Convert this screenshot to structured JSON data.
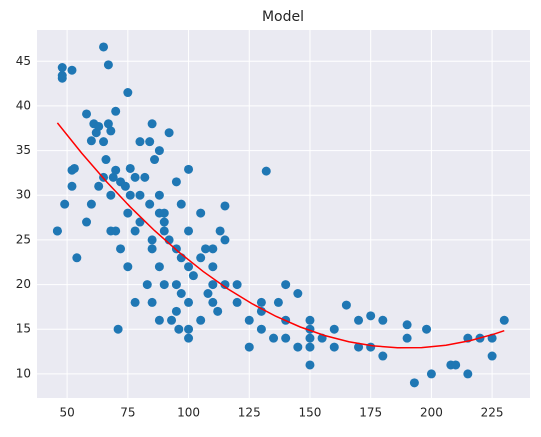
{
  "chart_data": {
    "type": "scatter",
    "title": "Model",
    "xlim": [
      37.6,
      240.6
    ],
    "ylim": [
      7.3,
      48.5
    ],
    "xticks": [
      50,
      75,
      100,
      125,
      150,
      175,
      200,
      225
    ],
    "yticks": [
      10,
      15,
      20,
      25,
      30,
      35,
      40,
      45
    ],
    "grid": true,
    "series": [
      {
        "type": "scatter",
        "color": "#1f77b4",
        "x": [
          46,
          46,
          48,
          48,
          48,
          49,
          52,
          52,
          52,
          53,
          54,
          58,
          60,
          61,
          62,
          63,
          65,
          65,
          67,
          67,
          68,
          69,
          70,
          71,
          70,
          72,
          74,
          75,
          76,
          78,
          78,
          80,
          84,
          85,
          86,
          88,
          88,
          90,
          92,
          95,
          97,
          100,
          100,
          105,
          110,
          113,
          115,
          132,
          150,
          150,
          165,
          175,
          190,
          193,
          198,
          200,
          208,
          210,
          215,
          220,
          225,
          230,
          225,
          215,
          180,
          175,
          170,
          160,
          155,
          145,
          140,
          135,
          130,
          125,
          130,
          140,
          150,
          160,
          170,
          180,
          190,
          150,
          140,
          145,
          137,
          120,
          110,
          105,
          100,
          95,
          90,
          85,
          110,
          110,
          120,
          125,
          130,
          100,
          95,
          90,
          85,
          80,
          75,
          70,
          68,
          65,
          63,
          72,
          78,
          83,
          88,
          92,
          97,
          102,
          108,
          112,
          115,
          105,
          100,
          96,
          88,
          93,
          97,
          80,
          84,
          76,
          66,
          60,
          58,
          75,
          68,
          90,
          95,
          150,
          100,
          107,
          115,
          85,
          88,
          82
        ],
        "values": [
          26,
          26,
          43.1,
          44.3,
          43.4,
          29,
          31,
          44,
          32.8,
          33,
          23,
          39.1,
          36.1,
          38,
          37,
          37.7,
          46.6,
          36,
          44.6,
          38,
          37.2,
          32,
          39.4,
          15,
          32.8,
          31.5,
          31,
          41.5,
          30,
          18,
          32,
          36,
          36,
          38,
          34,
          30,
          35,
          28,
          37,
          31.5,
          29,
          32.9,
          26,
          28,
          20,
          26,
          28.8,
          32.7,
          16,
          11,
          17.7,
          16.5,
          15.5,
          9,
          15,
          10,
          11,
          11,
          10,
          14,
          12,
          16,
          14,
          14,
          12,
          13,
          13,
          13,
          14,
          13,
          14,
          14,
          15,
          13,
          17,
          16,
          15,
          15,
          16,
          16,
          14,
          13,
          20,
          19,
          18,
          20,
          18,
          16,
          14,
          17,
          20,
          18,
          22,
          24,
          18,
          16,
          18,
          22,
          24,
          26,
          24,
          27,
          28,
          26,
          30,
          32,
          31,
          24,
          26,
          20,
          22,
          25,
          23,
          21,
          19,
          17,
          25,
          23,
          18,
          15,
          16,
          16,
          19,
          30,
          29,
          33,
          34,
          29,
          27,
          22,
          26,
          27,
          20,
          14,
          15,
          24,
          20,
          25,
          28,
          32
        ]
      },
      {
        "type": "line",
        "color": "#ff0000",
        "x": [
          46,
          56,
          66,
          76,
          86,
          96,
          106,
          116,
          126,
          136,
          146,
          156,
          166,
          176,
          186,
          196,
          206,
          216,
          226,
          230
        ],
        "values": [
          38.1,
          34.72,
          31.58,
          28.69,
          26.04,
          23.64,
          21.47,
          19.55,
          17.88,
          16.44,
          15.25,
          14.3,
          13.6,
          13.14,
          12.92,
          12.94,
          13.21,
          13.72,
          14.47,
          14.84
        ]
      }
    ]
  }
}
